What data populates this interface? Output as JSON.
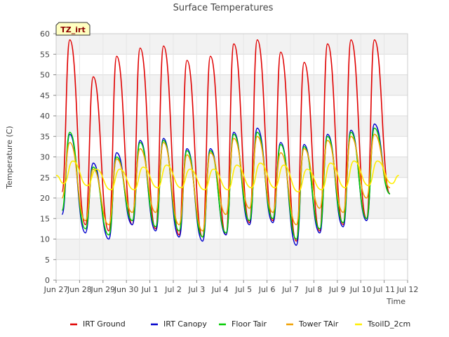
{
  "chart_data": {
    "type": "line",
    "title": "Surface Temperatures",
    "site_tag": "TZ_irt",
    "xlabel": "Time",
    "ylabel": "Temperature (C)",
    "ylim": [
      0,
      60
    ],
    "yticks": [
      0,
      5,
      10,
      15,
      20,
      25,
      30,
      35,
      40,
      45,
      50,
      55,
      60
    ],
    "xlim": [
      "2024-06-27",
      "2024-07-12"
    ],
    "xticks": [
      {
        "date": "2024-06-27",
        "label": "Jun 27"
      },
      {
        "date": "2024-06-28",
        "label": "Jun 28"
      },
      {
        "date": "2024-06-29",
        "label": "Jun 29"
      },
      {
        "date": "2024-06-30",
        "label": "Jun 30"
      },
      {
        "date": "2024-07-01",
        "label": "Jul 1"
      },
      {
        "date": "2024-07-02",
        "label": "Jul 2"
      },
      {
        "date": "2024-07-03",
        "label": "Jul 3"
      },
      {
        "date": "2024-07-04",
        "label": "Jul 4"
      },
      {
        "date": "2024-07-05",
        "label": "Jul 5"
      },
      {
        "date": "2024-07-06",
        "label": "Jul 6"
      },
      {
        "date": "2024-07-07",
        "label": "Jul 7"
      },
      {
        "date": "2024-07-08",
        "label": "Jul 8"
      },
      {
        "date": "2024-07-09",
        "label": "Jul 9"
      },
      {
        "date": "2024-07-10",
        "label": "Jul 10"
      },
      {
        "date": "2024-07-11",
        "label": "Jul 11"
      },
      {
        "date": "2024-07-12",
        "label": "Jul 12"
      }
    ],
    "grid": true,
    "legend_position": "bottom",
    "series": [
      {
        "name": "IRT Ground",
        "color": "#e00000",
        "points": [
          [
            "2024-06-27 06:00",
            21.5
          ],
          [
            "2024-06-27 14:00",
            58.5
          ],
          [
            "2024-06-28 06:00",
            13.5
          ],
          [
            "2024-06-28 14:00",
            49.5
          ],
          [
            "2024-06-29 06:00",
            12.0
          ],
          [
            "2024-06-29 14:00",
            54.5
          ],
          [
            "2024-06-30 06:00",
            13.5
          ],
          [
            "2024-06-30 14:00",
            56.5
          ],
          [
            "2024-07-01 06:00",
            12.5
          ],
          [
            "2024-07-01 14:00",
            57.0
          ],
          [
            "2024-07-02 06:00",
            11.0
          ],
          [
            "2024-07-02 14:00",
            53.5
          ],
          [
            "2024-07-03 06:00",
            10.5
          ],
          [
            "2024-07-03 14:00",
            54.5
          ],
          [
            "2024-07-04 06:00",
            11.0
          ],
          [
            "2024-07-04 14:00",
            57.5
          ],
          [
            "2024-07-05 06:00",
            14.0
          ],
          [
            "2024-07-05 14:00",
            58.5
          ],
          [
            "2024-07-06 06:00",
            14.5
          ],
          [
            "2024-07-06 14:00",
            55.5
          ],
          [
            "2024-07-07 06:00",
            9.5
          ],
          [
            "2024-07-07 14:00",
            53.0
          ],
          [
            "2024-07-08 06:00",
            12.0
          ],
          [
            "2024-07-08 14:00",
            57.5
          ],
          [
            "2024-07-09 06:00",
            13.5
          ],
          [
            "2024-07-09 14:00",
            58.5
          ],
          [
            "2024-07-10 06:00",
            15.0
          ],
          [
            "2024-07-10 14:00",
            58.5
          ],
          [
            "2024-07-11 06:00",
            21.0
          ]
        ]
      },
      {
        "name": "IRT Canopy",
        "color": "#0000cc",
        "points": [
          [
            "2024-06-27 06:00",
            16.0
          ],
          [
            "2024-06-27 14:00",
            35.5
          ],
          [
            "2024-06-28 06:00",
            11.5
          ],
          [
            "2024-06-28 14:00",
            28.5
          ],
          [
            "2024-06-29 06:00",
            10.0
          ],
          [
            "2024-06-29 14:00",
            31.0
          ],
          [
            "2024-06-30 06:00",
            13.5
          ],
          [
            "2024-06-30 14:00",
            34.0
          ],
          [
            "2024-07-01 06:00",
            12.0
          ],
          [
            "2024-07-01 14:00",
            34.5
          ],
          [
            "2024-07-02 06:00",
            10.5
          ],
          [
            "2024-07-02 14:00",
            32.0
          ],
          [
            "2024-07-03 06:00",
            9.5
          ],
          [
            "2024-07-03 14:00",
            32.0
          ],
          [
            "2024-07-04 06:00",
            11.0
          ],
          [
            "2024-07-04 14:00",
            36.0
          ],
          [
            "2024-07-05 06:00",
            13.5
          ],
          [
            "2024-07-05 14:00",
            37.0
          ],
          [
            "2024-07-06 06:00",
            14.0
          ],
          [
            "2024-07-06 14:00",
            33.5
          ],
          [
            "2024-07-07 06:00",
            8.5
          ],
          [
            "2024-07-07 14:00",
            33.0
          ],
          [
            "2024-07-08 06:00",
            11.5
          ],
          [
            "2024-07-08 14:00",
            35.5
          ],
          [
            "2024-07-09 06:00",
            13.0
          ],
          [
            "2024-07-09 14:00",
            36.5
          ],
          [
            "2024-07-10 06:00",
            14.5
          ],
          [
            "2024-07-10 14:00",
            38.0
          ],
          [
            "2024-07-11 06:00",
            21.0
          ]
        ]
      },
      {
        "name": "Floor Tair",
        "color": "#00cc00",
        "points": [
          [
            "2024-06-27 06:00",
            17.0
          ],
          [
            "2024-06-27 14:00",
            36.0
          ],
          [
            "2024-06-28 06:00",
            12.5
          ],
          [
            "2024-06-28 14:00",
            27.5
          ],
          [
            "2024-06-29 06:00",
            11.0
          ],
          [
            "2024-06-29 14:00",
            30.0
          ],
          [
            "2024-06-30 06:00",
            14.5
          ],
          [
            "2024-06-30 14:00",
            33.5
          ],
          [
            "2024-07-01 06:00",
            13.0
          ],
          [
            "2024-07-01 14:00",
            34.0
          ],
          [
            "2024-07-02 06:00",
            12.0
          ],
          [
            "2024-07-02 14:00",
            31.5
          ],
          [
            "2024-07-03 06:00",
            10.5
          ],
          [
            "2024-07-03 14:00",
            31.5
          ],
          [
            "2024-07-04 06:00",
            11.5
          ],
          [
            "2024-07-04 14:00",
            35.5
          ],
          [
            "2024-07-05 06:00",
            14.5
          ],
          [
            "2024-07-05 14:00",
            36.0
          ],
          [
            "2024-07-06 06:00",
            15.0
          ],
          [
            "2024-07-06 14:00",
            33.0
          ],
          [
            "2024-07-07 06:00",
            10.0
          ],
          [
            "2024-07-07 14:00",
            32.5
          ],
          [
            "2024-07-08 06:00",
            12.5
          ],
          [
            "2024-07-08 14:00",
            35.0
          ],
          [
            "2024-07-09 06:00",
            14.0
          ],
          [
            "2024-07-09 14:00",
            36.0
          ],
          [
            "2024-07-10 06:00",
            15.0
          ],
          [
            "2024-07-10 14:00",
            37.0
          ],
          [
            "2024-07-11 06:00",
            21.0
          ]
        ]
      },
      {
        "name": "Tower TAir",
        "color": "#f0a000",
        "points": [
          [
            "2024-06-27 06:00",
            20.0
          ],
          [
            "2024-06-27 14:00",
            33.5
          ],
          [
            "2024-06-28 06:00",
            14.5
          ],
          [
            "2024-06-28 14:00",
            27.0
          ],
          [
            "2024-06-29 06:00",
            13.5
          ],
          [
            "2024-06-29 14:00",
            29.5
          ],
          [
            "2024-06-30 06:00",
            16.5
          ],
          [
            "2024-06-30 14:00",
            32.0
          ],
          [
            "2024-07-01 06:00",
            16.5
          ],
          [
            "2024-07-01 14:00",
            33.5
          ],
          [
            "2024-07-02 06:00",
            13.5
          ],
          [
            "2024-07-02 14:00",
            30.5
          ],
          [
            "2024-07-03 06:00",
            12.0
          ],
          [
            "2024-07-03 14:00",
            31.0
          ],
          [
            "2024-07-04 06:00",
            16.0
          ],
          [
            "2024-07-04 14:00",
            34.5
          ],
          [
            "2024-07-05 06:00",
            17.5
          ],
          [
            "2024-07-05 14:00",
            35.0
          ],
          [
            "2024-07-06 06:00",
            16.5
          ],
          [
            "2024-07-06 14:00",
            31.0
          ],
          [
            "2024-07-07 06:00",
            13.5
          ],
          [
            "2024-07-07 14:00",
            32.0
          ],
          [
            "2024-07-08 06:00",
            17.5
          ],
          [
            "2024-07-08 14:00",
            34.0
          ],
          [
            "2024-07-09 06:00",
            16.5
          ],
          [
            "2024-07-09 14:00",
            35.0
          ],
          [
            "2024-07-10 06:00",
            20.0
          ],
          [
            "2024-07-10 14:00",
            35.5
          ],
          [
            "2024-07-11 06:00",
            22.5
          ]
        ]
      },
      {
        "name": "TsoilD_2cm",
        "color": "#ffee00",
        "points": [
          [
            "2024-06-27 00:00",
            25.5
          ],
          [
            "2024-06-27 08:00",
            23.5
          ],
          [
            "2024-06-27 17:00",
            29.0
          ],
          [
            "2024-06-28 08:00",
            23.0
          ],
          [
            "2024-06-28 17:00",
            27.0
          ],
          [
            "2024-06-29 08:00",
            22.0
          ],
          [
            "2024-06-29 17:00",
            27.0
          ],
          [
            "2024-06-30 08:00",
            22.0
          ],
          [
            "2024-06-30 17:00",
            27.5
          ],
          [
            "2024-07-01 08:00",
            22.5
          ],
          [
            "2024-07-01 17:00",
            28.0
          ],
          [
            "2024-07-02 08:00",
            22.5
          ],
          [
            "2024-07-02 17:00",
            27.0
          ],
          [
            "2024-07-03 08:00",
            22.0
          ],
          [
            "2024-07-03 17:00",
            27.0
          ],
          [
            "2024-07-04 08:00",
            22.0
          ],
          [
            "2024-07-04 17:00",
            28.0
          ],
          [
            "2024-07-05 08:00",
            22.5
          ],
          [
            "2024-07-05 17:00",
            28.5
          ],
          [
            "2024-07-06 08:00",
            22.5
          ],
          [
            "2024-07-06 17:00",
            28.0
          ],
          [
            "2024-07-07 08:00",
            21.5
          ],
          [
            "2024-07-07 17:00",
            27.0
          ],
          [
            "2024-07-08 08:00",
            22.0
          ],
          [
            "2024-07-08 17:00",
            28.5
          ],
          [
            "2024-07-09 08:00",
            22.5
          ],
          [
            "2024-07-09 17:00",
            29.0
          ],
          [
            "2024-07-10 08:00",
            23.0
          ],
          [
            "2024-07-10 17:00",
            29.0
          ],
          [
            "2024-07-11 08:00",
            23.5
          ],
          [
            "2024-07-11 15:00",
            25.5
          ]
        ]
      }
    ]
  }
}
